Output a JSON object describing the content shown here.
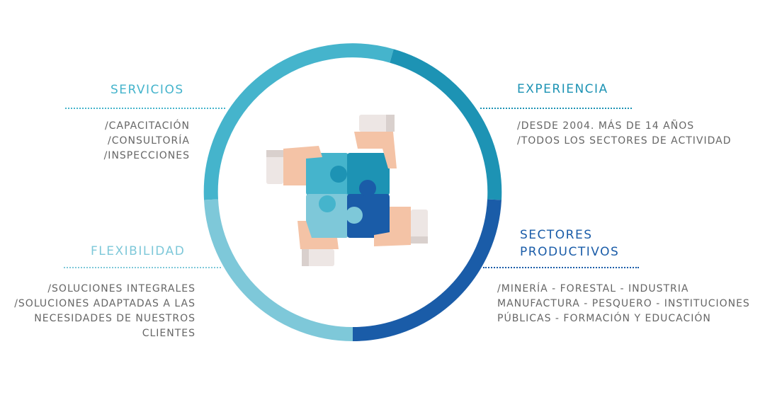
{
  "colors": {
    "servicios": "#45b4cc",
    "experiencia": "#1d93b4",
    "sectores": "#1a5ca8",
    "flexibilidad": "#7ec8d9",
    "body_text": "#666666"
  },
  "servicios": {
    "title": "SERVICIOS",
    "lines": [
      "/CAPACITACIÓN",
      "/CONSULTORÍA",
      "/INSPECCIONES"
    ]
  },
  "experiencia": {
    "title": "EXPERIENCIA",
    "lines": [
      "/DESDE 2004. MÁS DE 14 AÑOS",
      "/TODOS LOS SECTORES DE ACTIVIDAD"
    ]
  },
  "flexibilidad": {
    "title": "FLEXIBILIDAD",
    "lines": [
      "/SOLUCIONES INTEGRALES",
      "/SOLUCIONES ADAPTADAS A LAS",
      "NECESIDADES DE NUESTROS",
      "CLIENTES"
    ]
  },
  "sectores": {
    "title_lines": [
      "SECTORES",
      "PRODUCTIVOS"
    ],
    "lines": [
      "/MINERÍA - FORESTAL - INDUSTRIA",
      "MANUFACTURA - PESQUERO - INSTITUCIONES",
      "PÚBLICAS - FORMACIÓN Y EDUCACIÓN"
    ]
  },
  "center_icon": "puzzle-hands-icon"
}
